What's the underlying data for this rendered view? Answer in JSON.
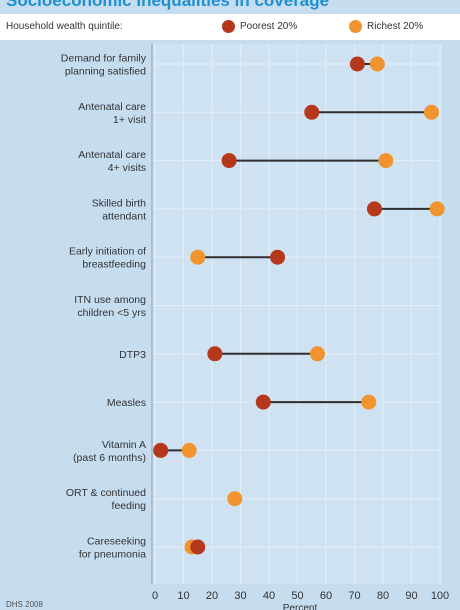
{
  "header": {
    "title": "Socioeconomic inequalities in coverage"
  },
  "legend": {
    "label": "Household wealth quintile:",
    "items": [
      {
        "name": "Poorest 20%",
        "color": "#b5381c"
      },
      {
        "name": "Richest 20%",
        "color": "#f19430"
      }
    ]
  },
  "footer": {
    "source": "DHS 2008"
  },
  "chart_data": {
    "type": "dumbbell",
    "xlabel": "Percent",
    "xlim": [
      0,
      100
    ],
    "xticks": [
      0,
      10,
      20,
      30,
      40,
      50,
      60,
      70,
      80,
      90,
      100
    ],
    "grid": true,
    "legend_position": "top",
    "categories": [
      [
        "Demand for family",
        "planning satisfied"
      ],
      [
        "Antenatal care",
        "1+ visit"
      ],
      [
        "Antenatal care",
        "4+ visits"
      ],
      [
        "Skilled birth",
        "attendant"
      ],
      [
        "Early initiation of",
        "breastfeeding"
      ],
      [
        "ITN use among",
        "children <5 yrs"
      ],
      [
        "DTP3"
      ],
      [
        "Measles"
      ],
      [
        "Vitamin A",
        "(past 6 months)"
      ],
      [
        "ORT & continued",
        "feeding"
      ],
      [
        "Careseeking",
        "for pneumonia"
      ]
    ],
    "series": [
      {
        "name": "Poorest 20%",
        "color": "#b5381c",
        "values": [
          71,
          55,
          26,
          77,
          43,
          null,
          21,
          38,
          2,
          null,
          15
        ]
      },
      {
        "name": "Richest 20%",
        "color": "#f19430",
        "values": [
          78,
          97,
          81,
          99,
          15,
          null,
          57,
          75,
          12,
          28,
          13
        ]
      }
    ]
  }
}
